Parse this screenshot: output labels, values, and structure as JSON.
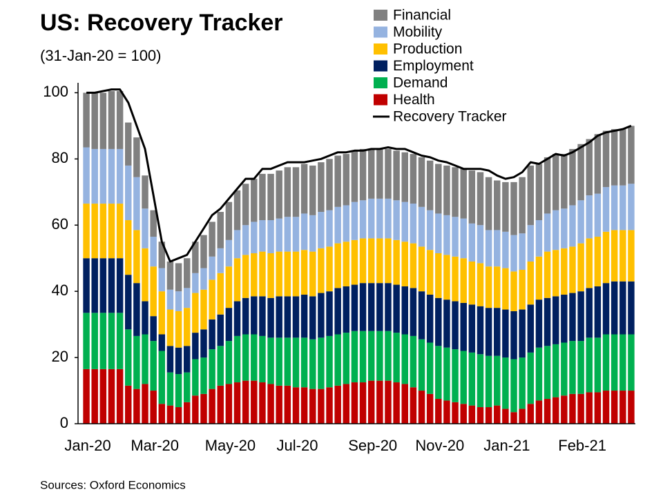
{
  "chart_data": {
    "type": "stacked_bar_line",
    "title": "US: Recovery Tracker",
    "subtitle": "(31-Jan-20 = 100)",
    "source": "Sources: Oxford Economics",
    "categories": [
      "Jan-20",
      null,
      null,
      null,
      null,
      null,
      null,
      null,
      "Mar-20",
      null,
      null,
      null,
      null,
      null,
      null,
      null,
      null,
      "May-20",
      null,
      null,
      null,
      null,
      null,
      null,
      null,
      "Jul-20",
      null,
      null,
      null,
      null,
      null,
      null,
      null,
      null,
      "Sep-20",
      null,
      null,
      null,
      null,
      null,
      null,
      null,
      "Nov-20",
      null,
      null,
      null,
      null,
      null,
      null,
      null,
      "Jan-21",
      null,
      null,
      null,
      null,
      null,
      null,
      null,
      null,
      "Feb-21",
      null,
      null,
      null,
      null,
      null,
      null
    ],
    "ylim": [
      0,
      103
    ],
    "yticks": [
      0,
      20,
      40,
      60,
      80,
      100
    ],
    "series": [
      {
        "name": "Health",
        "color": "#c00000",
        "values": [
          16.5,
          16.5,
          16.5,
          16.5,
          16.5,
          11.5,
          10.5,
          12,
          10,
          6,
          5.5,
          5,
          6.5,
          8.5,
          9,
          10.5,
          11.5,
          12,
          12.5,
          13,
          13,
          12.5,
          12,
          11.5,
          11.5,
          11,
          11,
          10.5,
          10.5,
          11,
          11.5,
          12,
          12.5,
          12.5,
          13,
          13,
          13,
          12.5,
          12,
          11,
          10,
          9,
          7.5,
          7,
          6.5,
          6,
          5.5,
          5,
          5,
          5.5,
          4.5,
          3.5,
          4.5,
          6,
          7,
          7.5,
          8,
          8.5,
          9,
          9,
          9.5,
          9.5,
          10,
          10,
          10,
          10
        ]
      },
      {
        "name": "Demand",
        "color": "#00b050",
        "values": [
          17,
          17,
          17,
          17,
          17,
          17,
          16,
          15,
          15,
          16,
          10,
          10,
          9,
          11,
          11,
          12,
          12,
          13,
          14,
          14,
          14,
          14,
          14,
          14.5,
          14.5,
          15,
          15,
          15,
          15.5,
          15.5,
          15.5,
          15.5,
          15.5,
          15.5,
          15,
          15,
          15,
          15,
          15,
          15.5,
          15.5,
          15.5,
          16,
          16,
          16,
          16,
          16,
          16,
          15.5,
          15,
          15.5,
          16,
          15.5,
          15.5,
          16,
          16,
          16,
          16,
          16,
          16,
          16.5,
          16.5,
          17,
          17,
          17,
          17
        ]
      },
      {
        "name": "Employment",
        "color": "#002060",
        "values": [
          16.5,
          16.5,
          16.5,
          16.5,
          16.5,
          16.5,
          16,
          10,
          7.5,
          5,
          8,
          8,
          8,
          8,
          8.5,
          9,
          9.5,
          10,
          10.5,
          11,
          11.5,
          12,
          12,
          12.5,
          12.5,
          12.5,
          13,
          13,
          13.5,
          13.5,
          14,
          14,
          14,
          14.5,
          14.5,
          14.5,
          14.5,
          14.5,
          14.5,
          14.5,
          14.5,
          14.5,
          14.5,
          14.5,
          14.5,
          14.5,
          14.5,
          14.5,
          14.5,
          14.5,
          14.5,
          14.5,
          14.5,
          14.5,
          14.5,
          14.5,
          14.5,
          14.5,
          14.5,
          15,
          15,
          15.5,
          15.5,
          16,
          16,
          16
        ]
      },
      {
        "name": "Production",
        "color": "#ffc000",
        "values": [
          16.5,
          16.5,
          16.5,
          16.5,
          16.5,
          16.5,
          16,
          16,
          15,
          13,
          11,
          11,
          11.5,
          12,
          12,
          12,
          12.5,
          12.5,
          13,
          13,
          13,
          13.5,
          13.5,
          13.5,
          13.5,
          13.5,
          13.5,
          13.5,
          13.5,
          13.5,
          13.5,
          13.5,
          13.5,
          13.5,
          13.5,
          13.5,
          13.5,
          13.5,
          13.5,
          13.5,
          13.5,
          13.5,
          13.5,
          13.5,
          13.5,
          13.5,
          13,
          13,
          12.5,
          12.5,
          12.5,
          12,
          12,
          13,
          13,
          14,
          14,
          14,
          14,
          14.5,
          15,
          15,
          15.5,
          15.5,
          15.5,
          15.5
        ]
      },
      {
        "name": "Mobility",
        "color": "#95b3e0",
        "values": [
          17,
          16.5,
          16.5,
          16.5,
          16.5,
          16.5,
          16,
          12,
          9,
          7,
          6,
          6,
          6,
          6,
          6.5,
          7,
          7.5,
          8,
          8.5,
          9,
          9.5,
          9.5,
          10,
          10,
          10.5,
          10.5,
          11,
          11,
          11,
          11,
          11,
          11,
          11.5,
          11.5,
          12,
          12,
          12,
          12,
          12,
          12,
          12,
          12,
          12,
          12,
          12,
          12,
          11.5,
          11.5,
          11,
          11,
          11,
          11,
          11,
          11,
          11,
          11.5,
          12,
          12,
          12.5,
          13,
          13,
          13,
          13.5,
          13.5,
          13.5,
          14
        ]
      },
      {
        "name": "Financial",
        "color": "#808080",
        "values": [
          16.5,
          17,
          17,
          17.5,
          17.5,
          13,
          12,
          10,
          8,
          8,
          8.5,
          8.5,
          9,
          9.5,
          10,
          10.5,
          11,
          11.5,
          12,
          12.5,
          13,
          14,
          14,
          14.5,
          15,
          15,
          15,
          15,
          15,
          15.5,
          15.5,
          15.5,
          15.5,
          15.5,
          15,
          15,
          15,
          15,
          15,
          15,
          15,
          15,
          15,
          15,
          15,
          15,
          16,
          16,
          16,
          15,
          15,
          16,
          17,
          18,
          17,
          17,
          17,
          16.5,
          17,
          17,
          17,
          18,
          17,
          17,
          17,
          17.5
        ]
      },
      {
        "name": "Recovery Tracker",
        "color": "#000000",
        "type": "line",
        "values": [
          100,
          100,
          100.5,
          101,
          101,
          97,
          90,
          83,
          69,
          55,
          49,
          50,
          51,
          55,
          59,
          63,
          65,
          68,
          71,
          74,
          74,
          77,
          77,
          78,
          79,
          79,
          79,
          79.5,
          80,
          81,
          82,
          82,
          82.5,
          82.5,
          83,
          83,
          83.5,
          83,
          83,
          82,
          81,
          80.5,
          79.5,
          79,
          78,
          77,
          77,
          77,
          76.5,
          75,
          74,
          74.5,
          76,
          79,
          78.5,
          80,
          81.5,
          81,
          82,
          83.5,
          85,
          87,
          88,
          88.5,
          89,
          90
        ]
      }
    ]
  }
}
